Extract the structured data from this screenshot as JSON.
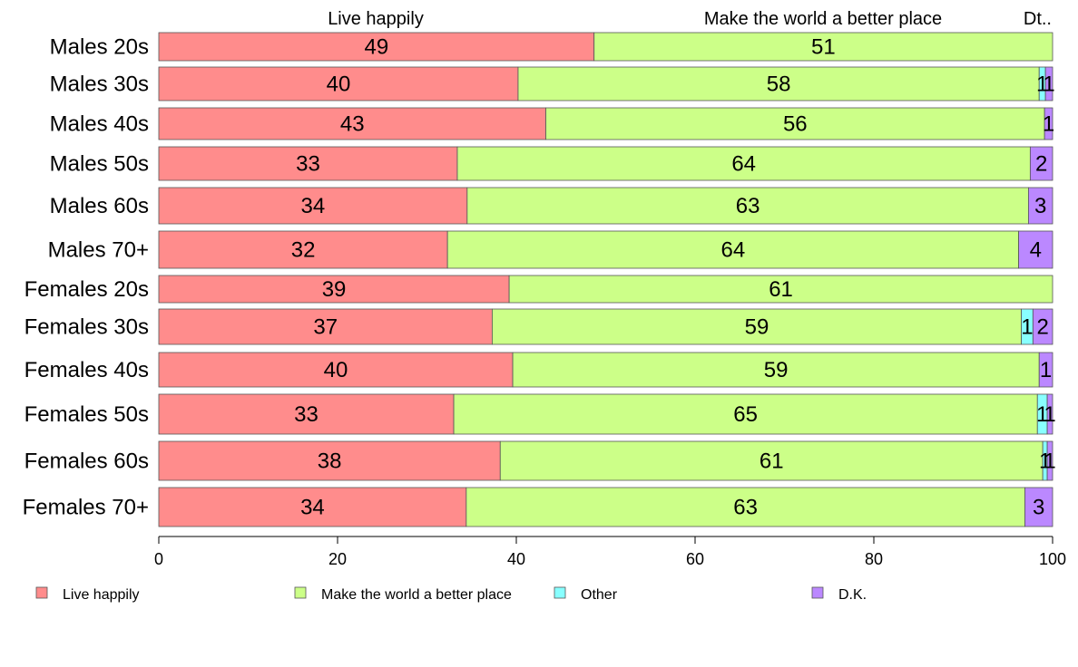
{
  "chart_data": {
    "type": "bar",
    "orientation": "horizontal",
    "stacked": true,
    "categories": [
      "Males 20s",
      "Males 30s",
      "Males 40s",
      "Males 50s",
      "Males 60s",
      "Males 70+",
      "Females 20s",
      "Females 30s",
      "Females 40s",
      "Females 50s",
      "Females 60s",
      "Females 70+"
    ],
    "series": [
      {
        "name": "Live happily",
        "color": "#FF8C8C",
        "values": [
          48.7,
          40.2,
          43.3,
          33.4,
          34.5,
          32.3,
          39.2,
          37.3,
          39.6,
          33.0,
          38.2,
          34.4
        ],
        "labels": [
          "49",
          "40",
          "43",
          "33",
          "34",
          "32",
          "39",
          "37",
          "40",
          "33",
          "38",
          "34"
        ]
      },
      {
        "name": "Make the world a better place",
        "color": "#CCFF88",
        "values": [
          51.3,
          58.3,
          55.8,
          64.1,
          62.8,
          63.9,
          60.8,
          59.2,
          58.9,
          65.3,
          60.7,
          62.5
        ],
        "labels": [
          "51",
          "58",
          "56",
          "64",
          "63",
          "64",
          "61",
          "59",
          "59",
          "65",
          "61",
          "63"
        ]
      },
      {
        "name": "Other",
        "color": "#88FFFF",
        "values": [
          0,
          0.7,
          0,
          0,
          0,
          0,
          0,
          1.3,
          0,
          1.1,
          0.5,
          0
        ],
        "labels": [
          "",
          "1",
          "",
          "",
          "",
          "",
          "",
          "1",
          "",
          "1",
          "1",
          ""
        ]
      },
      {
        "name": "D.K.",
        "color": "#BB88FF",
        "values": [
          0,
          0.8,
          0.9,
          2.5,
          2.7,
          3.8,
          0,
          2.2,
          1.5,
          0.6,
          0.6,
          3.1
        ],
        "labels": [
          "",
          "1",
          "1",
          "2",
          "3",
          "4",
          "",
          "2",
          "1",
          "1",
          "1",
          "3"
        ]
      }
    ],
    "top_labels": [
      "Live happily",
      "Make the world a better place",
      "Dt.."
    ],
    "xlim": [
      0,
      100
    ],
    "xticks": [
      "0",
      "20",
      "40",
      "60",
      "80",
      "100"
    ],
    "grid": false,
    "legend_position": "bottom"
  }
}
